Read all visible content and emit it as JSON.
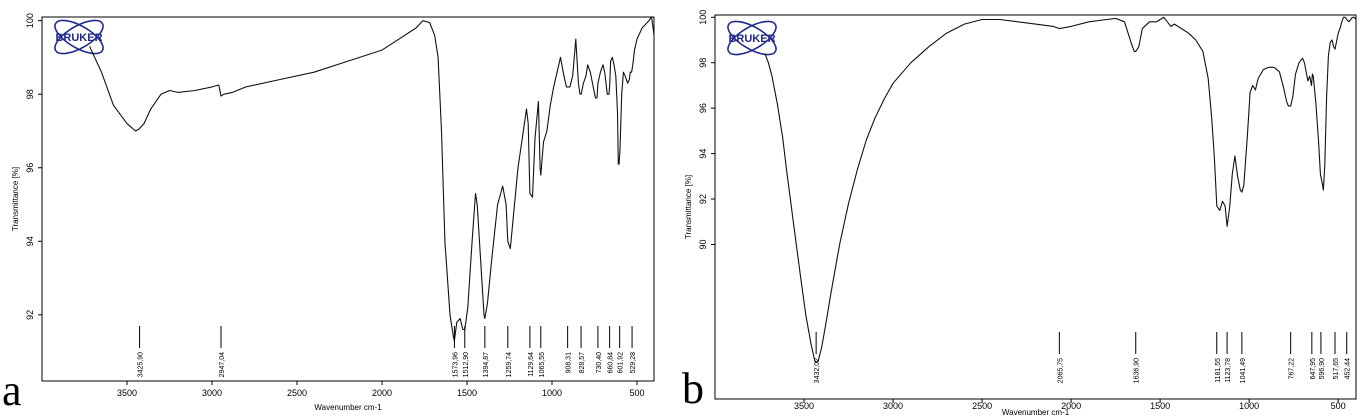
{
  "panels": [
    {
      "letter": "a",
      "logo_text": "BRUKER",
      "chart_data": {
        "type": "line",
        "title": "",
        "xlabel": "Wavenumber cm-1",
        "ylabel": "Transmittance [%]",
        "xlim": [
          4000,
          400
        ],
        "ylim": [
          90.2,
          100.1
        ],
        "x_ticks": [
          3500,
          3000,
          2500,
          2000,
          1500,
          1000,
          500
        ],
        "y_ticks": [
          92,
          94,
          96,
          98,
          100
        ],
        "grid": false,
        "series": [
          {
            "x": [
              3720,
              3650,
              3580,
              3500,
              3450,
              3430,
              3400,
              3360,
              3300,
              3250,
              3200,
              3100,
              3000,
              2960,
              2947,
              2930,
              2880,
              2800,
              2600,
              2400,
              2200,
              2000,
              1900,
              1800,
              1760,
              1720,
              1690,
              1670,
              1650,
              1630,
              1600,
              1580,
              1574,
              1560,
              1540,
              1525,
              1513,
              1495,
              1470,
              1450,
              1440,
              1420,
              1400,
              1395,
              1380,
              1355,
              1320,
              1290,
              1270,
              1260,
              1245,
              1225,
              1200,
              1175,
              1150,
              1140,
              1130,
              1115,
              1100,
              1080,
              1070,
              1066,
              1050,
              1030,
              1010,
              990,
              950,
              930,
              915,
              908,
              895,
              878,
              860,
              845,
              835,
              828,
              815,
              800,
              790,
              775,
              745,
              735,
              730,
              715,
              700,
              690,
              675,
              665,
              660,
              655,
              645,
              635,
              625,
              615,
              610,
              605,
              600,
              590,
              580,
              570,
              555,
              545,
              540,
              532,
              525,
              515,
              500,
              490,
              470,
              450,
              430,
              415,
              405,
              400
            ],
            "y": [
              99.3,
              98.6,
              97.7,
              97.2,
              97.0,
              97.05,
              97.2,
              97.6,
              98.0,
              98.1,
              98.05,
              98.1,
              98.2,
              98.25,
              97.95,
              98.0,
              98.05,
              98.2,
              98.4,
              98.6,
              98.9,
              99.2,
              99.5,
              99.8,
              100.0,
              99.95,
              99.6,
              99.0,
              97.0,
              94.0,
              92.0,
              91.4,
              91.3,
              91.8,
              91.9,
              91.6,
              91.6,
              92.2,
              94.0,
              95.3,
              95.0,
              93.5,
              92.0,
              91.9,
              92.3,
              93.5,
              95.0,
              95.5,
              95.0,
              94.0,
              93.8,
              94.8,
              96.0,
              96.8,
              97.6,
              97.2,
              95.3,
              95.2,
              96.8,
              97.8,
              96.0,
              95.8,
              96.7,
              97.0,
              97.7,
              98.2,
              99.0,
              98.5,
              98.2,
              98.2,
              98.2,
              98.5,
              99.5,
              98.3,
              98.0,
              98.0,
              98.3,
              98.5,
              98.8,
              98.6,
              97.9,
              97.9,
              98.3,
              98.6,
              98.8,
              98.6,
              98.0,
              98.0,
              98.3,
              98.9,
              99.0,
              98.8,
              98.5,
              97.5,
              96.1,
              96.1,
              96.5,
              98.0,
              98.6,
              98.5,
              98.3,
              98.4,
              98.6,
              98.6,
              98.8,
              99.2,
              99.5,
              99.6,
              99.8,
              99.9,
              100.0,
              100.1,
              99.8,
              99.6
            ]
          }
        ],
        "peak_labels": [
          "3425,90",
          "2947,04",
          "1573,96",
          "1512,90",
          "1394,87",
          "1259,74",
          "1129,64",
          "1065,55",
          "908,31",
          "828,57",
          "730,40",
          "660,84",
          "601,92",
          "529,28"
        ],
        "peak_x": [
          3426,
          2947,
          1574,
          1513,
          1395,
          1260,
          1130,
          1066,
          908,
          829,
          730,
          661,
          602,
          529
        ]
      }
    },
    {
      "letter": "b",
      "logo_text": "BRUKER",
      "chart_data": {
        "type": "line",
        "title": "",
        "xlabel": "Wavenumber cm-1",
        "ylabel": "Transmittance [%]",
        "xlim": [
          4000,
          400
        ],
        "ylim": [
          83.2,
          100.1
        ],
        "x_ticks": [
          3500,
          3000,
          2500,
          2000,
          1500,
          1000,
          500
        ],
        "y_ticks": [
          90,
          92,
          94,
          96,
          98,
          100
        ],
        "grid": false,
        "series": [
          {
            "x": [
              3720,
              3700,
              3680,
              3650,
              3620,
              3600,
              3560,
              3520,
              3490,
              3460,
              3440,
              3432,
              3420,
              3400,
              3380,
              3350,
              3300,
              3250,
              3200,
              3150,
              3100,
              3050,
              3000,
              2900,
              2800,
              2700,
              2600,
              2500,
              2400,
              2300,
              2200,
              2100,
              2066,
              2000,
              1900,
              1800,
              1750,
              1700,
              1680,
              1660,
              1645,
              1637,
              1620,
              1600,
              1560,
              1520,
              1500,
              1480,
              1460,
              1440,
              1420,
              1380,
              1340,
              1300,
              1260,
              1230,
              1210,
              1195,
              1182,
              1165,
              1150,
              1135,
              1124,
              1110,
              1095,
              1080,
              1065,
              1050,
              1041,
              1030,
              1010,
              995,
              980,
              965,
              950,
              920,
              890,
              860,
              830,
              810,
              790,
              780,
              767,
              755,
              740,
              720,
              700,
              690,
              670,
              660,
              650,
              645,
              640,
              625,
              610,
              600,
              590,
              583,
              575,
              565,
              555,
              545,
              535,
              525,
              518,
              510,
              500,
              490,
              480,
              470,
              460,
              452,
              440,
              430,
              420,
              410,
              400
            ],
            "y": [
              98.4,
              98.0,
              97.4,
              96.2,
              94.7,
              93.4,
              91.0,
              88.6,
              86.9,
              85.6,
              84.9,
              84.8,
              84.9,
              85.5,
              86.4,
              87.8,
              90.0,
              91.8,
              93.3,
              94.6,
              95.6,
              96.4,
              97.1,
              98.0,
              98.7,
              99.3,
              99.7,
              99.9,
              99.9,
              99.8,
              99.7,
              99.6,
              99.5,
              99.6,
              99.8,
              99.9,
              99.95,
              99.8,
              99.3,
              98.8,
              98.5,
              98.5,
              98.7,
              99.5,
              99.8,
              99.8,
              99.9,
              100.0,
              99.8,
              99.6,
              99.7,
              99.5,
              99.3,
              99.0,
              98.5,
              97.3,
              95.5,
              93.8,
              91.7,
              91.5,
              91.9,
              91.7,
              90.8,
              91.6,
              93.1,
              93.9,
              93.0,
              92.4,
              92.3,
              92.6,
              94.8,
              96.7,
              97.0,
              96.8,
              97.3,
              97.7,
              97.8,
              97.8,
              97.6,
              97.0,
              96.3,
              96.1,
              96.1,
              96.5,
              97.5,
              98.0,
              98.2,
              98.0,
              97.2,
              97.4,
              97.0,
              97.5,
              97.4,
              96.2,
              94.5,
              93.1,
              92.7,
              92.4,
              93.5,
              96.5,
              98.3,
              98.9,
              99.0,
              98.7,
              98.6,
              98.9,
              99.3,
              99.5,
              99.8,
              100.0,
              100.0,
              99.9,
              99.8,
              99.9,
              100.0,
              100.0,
              99.9
            ]
          }
        ],
        "peak_labels": [
          "3432,02",
          "2065,75",
          "1636,90",
          "1181,55",
          "1123,78",
          "1041,49",
          "767,22",
          "647,95",
          "596,90",
          "517,65",
          "452,44"
        ],
        "peak_x": [
          3432,
          2066,
          1637,
          1182,
          1124,
          1041,
          767,
          648,
          597,
          518,
          452
        ]
      }
    }
  ]
}
